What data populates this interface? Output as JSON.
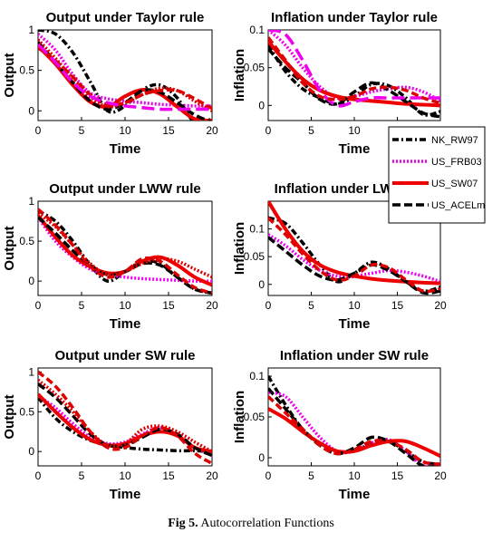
{
  "caption": {
    "label": "Fig 5.",
    "text": "Autocorrelation Functions"
  },
  "legend": {
    "position": "right, overlapping top-right and middle-right panels",
    "entries": [
      {
        "name": "NK_RW97",
        "color": "#000000",
        "style": "dashdot"
      },
      {
        "name": "US_FRB03",
        "color": "#ee00ee",
        "style": "dotted"
      },
      {
        "name": "US_SW07",
        "color": "#ee0000",
        "style": "solid"
      },
      {
        "name": "US_ACELm",
        "color": "#000000",
        "style": "dashed"
      }
    ]
  },
  "chart_data": [
    {
      "type": "line",
      "title": "Output under Taylor rule",
      "xlabel": "Time",
      "ylabel": "Output",
      "xlim": [
        0,
        20
      ],
      "ylim": [
        -0.12,
        1.0
      ],
      "xticks": [
        "0",
        "5",
        "10",
        "15",
        "20"
      ],
      "yticks": [
        "1",
        "0.5",
        "0"
      ],
      "x": [
        0,
        2,
        4,
        6,
        8,
        10,
        12,
        14,
        16,
        18,
        20
      ],
      "series": [
        {
          "name": "NK_RW97",
          "values": [
            1.0,
            0.95,
            0.72,
            0.36,
            0.0,
            0.06,
            0.26,
            0.32,
            0.16,
            -0.14,
            -0.1
          ]
        },
        {
          "name": "US_FRB03",
          "values": [
            0.95,
            0.75,
            0.45,
            0.22,
            0.15,
            0.12,
            0.1,
            0.08,
            0.07,
            0.06,
            0.06
          ]
        },
        {
          "name": "US_SW07",
          "values": [
            0.8,
            0.58,
            0.32,
            0.11,
            0.05,
            0.18,
            0.26,
            0.21,
            0.05,
            -0.1,
            -0.12
          ]
        },
        {
          "name": "US_ACELm",
          "values": [
            0.85,
            0.6,
            0.35,
            0.12,
            0.02,
            0.1,
            0.25,
            0.23,
            0.1,
            -0.05,
            -0.14
          ]
        },
        {
          "name": "US_SW07 (dotted red)",
          "values": [
            0.88,
            0.65,
            0.4,
            0.17,
            0.05,
            0.1,
            0.2,
            0.28,
            0.25,
            0.12,
            0.0
          ]
        },
        {
          "name": "US_SW07 (dashed red)",
          "values": [
            0.78,
            0.62,
            0.42,
            0.2,
            0.08,
            0.1,
            0.2,
            0.25,
            0.25,
            0.15,
            0.03
          ]
        },
        {
          "name": "US_FRB03 (magenta dashed)",
          "values": [
            0.82,
            0.6,
            0.35,
            0.18,
            0.1,
            0.06,
            0.04,
            0.02,
            0.02,
            0.02,
            0.02
          ]
        }
      ]
    },
    {
      "type": "line",
      "title": "Inflation under Taylor rule",
      "xlabel": "Time",
      "ylabel": "Inflation",
      "xlim": [
        0,
        20
      ],
      "ylim": [
        -0.02,
        0.1
      ],
      "xticks": [
        "0",
        "5",
        "10",
        "15",
        "20"
      ],
      "yticks": [
        "0.1",
        "0.05",
        "0"
      ],
      "x": [
        0,
        2,
        4,
        6,
        8,
        10,
        12,
        14,
        16,
        18,
        20
      ],
      "series": [
        {
          "name": "NK_RW97",
          "values": [
            0.08,
            0.045,
            0.022,
            0.01,
            0.002,
            0.012,
            0.028,
            0.026,
            0.01,
            -0.012,
            -0.008
          ]
        },
        {
          "name": "US_FRB03",
          "values": [
            0.1,
            0.08,
            0.05,
            0.025,
            0.01,
            0.012,
            0.018,
            0.022,
            0.024,
            0.018,
            0.006
          ]
        },
        {
          "name": "US_SW07",
          "values": [
            0.085,
            0.058,
            0.035,
            0.02,
            0.012,
            0.008,
            0.006,
            0.004,
            0.002,
            0.001,
            0.0
          ]
        },
        {
          "name": "US_ACELm",
          "values": [
            0.075,
            0.05,
            0.03,
            0.008,
            0.002,
            0.018,
            0.03,
            0.02,
            0.005,
            -0.01,
            -0.015
          ]
        },
        {
          "name": "US_FRB03 (magenta dashed)",
          "values": [
            0.1,
            0.094,
            0.06,
            0.02,
            0.0,
            0.005,
            0.01,
            0.01,
            0.01,
            0.01,
            0.01
          ]
        },
        {
          "name": "US_SW07 (dashed red)",
          "values": [
            0.09,
            0.06,
            0.03,
            0.012,
            0.008,
            0.012,
            0.022,
            0.024,
            0.02,
            0.01,
            0.003
          ]
        }
      ]
    },
    {
      "type": "line",
      "title": "Output under LWW rule",
      "xlabel": "Time",
      "ylabel": "Output",
      "xlim": [
        0,
        20
      ],
      "ylim": [
        -0.18,
        1.0
      ],
      "xticks": [
        "0",
        "5",
        "10",
        "15",
        "20"
      ],
      "yticks": [
        "1",
        "0.5",
        "0"
      ],
      "x": [
        0,
        2,
        4,
        6,
        8,
        10,
        12,
        14,
        16,
        18,
        20
      ],
      "series": [
        {
          "name": "NK_RW97",
          "values": [
            0.88,
            0.75,
            0.5,
            0.2,
            0.0,
            0.12,
            0.25,
            0.22,
            0.05,
            -0.1,
            -0.15
          ]
        },
        {
          "name": "US_FRB03",
          "values": [
            0.8,
            0.5,
            0.3,
            0.15,
            0.08,
            0.05,
            0.03,
            0.02,
            0.01,
            0.0,
            0.0
          ]
        },
        {
          "name": "US_SW07",
          "values": [
            0.82,
            0.55,
            0.32,
            0.18,
            0.1,
            0.12,
            0.25,
            0.3,
            0.2,
            0.05,
            -0.05
          ]
        },
        {
          "name": "US_ACELm",
          "values": [
            0.8,
            0.6,
            0.38,
            0.2,
            0.08,
            0.12,
            0.22,
            0.2,
            0.05,
            -0.1,
            -0.15
          ]
        },
        {
          "name": "US_SW07 (dotted red)",
          "values": [
            0.85,
            0.68,
            0.45,
            0.22,
            0.08,
            0.12,
            0.22,
            0.28,
            0.25,
            0.15,
            0.05
          ]
        },
        {
          "name": "US_SW07 (dashed red)",
          "values": [
            0.9,
            0.7,
            0.45,
            0.18,
            0.05,
            0.12,
            0.28,
            0.25,
            0.08,
            -0.08,
            -0.15
          ]
        }
      ]
    },
    {
      "type": "line",
      "title": "Inflation under LWW rule",
      "xlabel": "Time",
      "ylabel": "Inflation",
      "xlim": [
        0,
        20
      ],
      "ylim": [
        -0.02,
        0.15
      ],
      "xticks": [
        "0",
        "5",
        "10",
        "15",
        "20"
      ],
      "yticks": [
        "0.1",
        "0.05",
        "0"
      ],
      "x": [
        0,
        2,
        4,
        6,
        8,
        10,
        12,
        14,
        16,
        18,
        20
      ],
      "series": [
        {
          "name": "NK_RW97",
          "values": [
            0.12,
            0.11,
            0.075,
            0.035,
            0.005,
            0.02,
            0.04,
            0.028,
            0.005,
            -0.012,
            -0.005
          ]
        },
        {
          "name": "US_FRB03",
          "values": [
            0.09,
            0.07,
            0.045,
            0.025,
            0.015,
            0.015,
            0.02,
            0.025,
            0.022,
            0.015,
            0.005
          ]
        },
        {
          "name": "US_SW07",
          "values": [
            0.15,
            0.1,
            0.06,
            0.035,
            0.022,
            0.015,
            0.01,
            0.007,
            0.005,
            0.003,
            0.002
          ]
        },
        {
          "name": "US_ACELm",
          "values": [
            0.085,
            0.06,
            0.035,
            0.015,
            0.008,
            0.02,
            0.035,
            0.025,
            0.005,
            -0.015,
            -0.012
          ]
        },
        {
          "name": "US_SW07 (dashed red)",
          "values": [
            0.12,
            0.09,
            0.055,
            0.025,
            0.008,
            0.015,
            0.035,
            0.03,
            0.008,
            -0.012,
            -0.008
          ]
        }
      ]
    },
    {
      "type": "line",
      "title": "Output under SW rule",
      "xlabel": "Time",
      "ylabel": "Output",
      "xlim": [
        0,
        20
      ],
      "ylim": [
        -0.18,
        1.05
      ],
      "xticks": [
        "0",
        "5",
        "10",
        "15",
        "20"
      ],
      "yticks": [
        "1",
        "0.5",
        "0"
      ],
      "x": [
        0,
        2,
        4,
        6,
        8,
        10,
        12,
        14,
        16,
        18,
        20
      ],
      "series": [
        {
          "name": "NK_RW97",
          "values": [
            0.68,
            0.42,
            0.25,
            0.14,
            0.08,
            0.05,
            0.03,
            0.02,
            0.01,
            0.01,
            0.0
          ]
        },
        {
          "name": "US_FRB03",
          "values": [
            0.7,
            0.55,
            0.35,
            0.18,
            0.1,
            0.12,
            0.22,
            0.3,
            0.2,
            0.05,
            -0.02
          ]
        },
        {
          "name": "US_SW07",
          "values": [
            0.72,
            0.5,
            0.3,
            0.15,
            0.08,
            0.1,
            0.2,
            0.25,
            0.2,
            0.05,
            0.0
          ]
        },
        {
          "name": "US_ACELm",
          "values": [
            0.85,
            0.68,
            0.45,
            0.22,
            0.08,
            0.08,
            0.18,
            0.28,
            0.22,
            0.05,
            -0.05
          ]
        },
        {
          "name": "US_SW07 (dashed red)",
          "values": [
            1.0,
            0.82,
            0.55,
            0.25,
            0.05,
            0.05,
            0.2,
            0.3,
            0.2,
            -0.02,
            -0.15
          ]
        },
        {
          "name": "US_SW07 (dotted red)",
          "values": [
            0.9,
            0.72,
            0.5,
            0.25,
            0.08,
            0.1,
            0.28,
            0.32,
            0.25,
            0.12,
            0.0
          ]
        }
      ]
    },
    {
      "type": "line",
      "title": "Inflation under SW rule",
      "xlabel": "Time",
      "ylabel": "Inflation",
      "xlim": [
        0,
        20
      ],
      "ylim": [
        -0.01,
        0.11
      ],
      "xticks": [
        "0",
        "5",
        "10",
        "15",
        "20"
      ],
      "yticks": [
        "0.1",
        "0.05",
        "0"
      ],
      "x": [
        0,
        2,
        4,
        6,
        8,
        10,
        12,
        14,
        16,
        18,
        20
      ],
      "series": [
        {
          "name": "NK_RW97",
          "values": [
            0.1,
            0.065,
            0.035,
            0.018,
            0.008,
            0.008,
            0.018,
            0.02,
            0.008,
            -0.005,
            -0.008
          ]
        },
        {
          "name": "US_FRB03",
          "values": [
            0.08,
            0.075,
            0.05,
            0.025,
            0.008,
            0.008,
            0.018,
            0.022,
            0.008,
            -0.01,
            -0.008
          ]
        },
        {
          "name": "US_SW07",
          "values": [
            0.06,
            0.048,
            0.032,
            0.018,
            0.008,
            0.008,
            0.015,
            0.02,
            0.02,
            0.012,
            0.002
          ]
        },
        {
          "name": "US_ACELm",
          "values": [
            0.085,
            0.06,
            0.035,
            0.015,
            0.005,
            0.012,
            0.025,
            0.02,
            0.005,
            -0.01,
            -0.01
          ]
        },
        {
          "name": "US_SW07 (dashed red)",
          "values": [
            0.075,
            0.055,
            0.035,
            0.015,
            0.005,
            0.01,
            0.02,
            0.02,
            0.01,
            -0.005,
            -0.008
          ]
        }
      ]
    }
  ]
}
